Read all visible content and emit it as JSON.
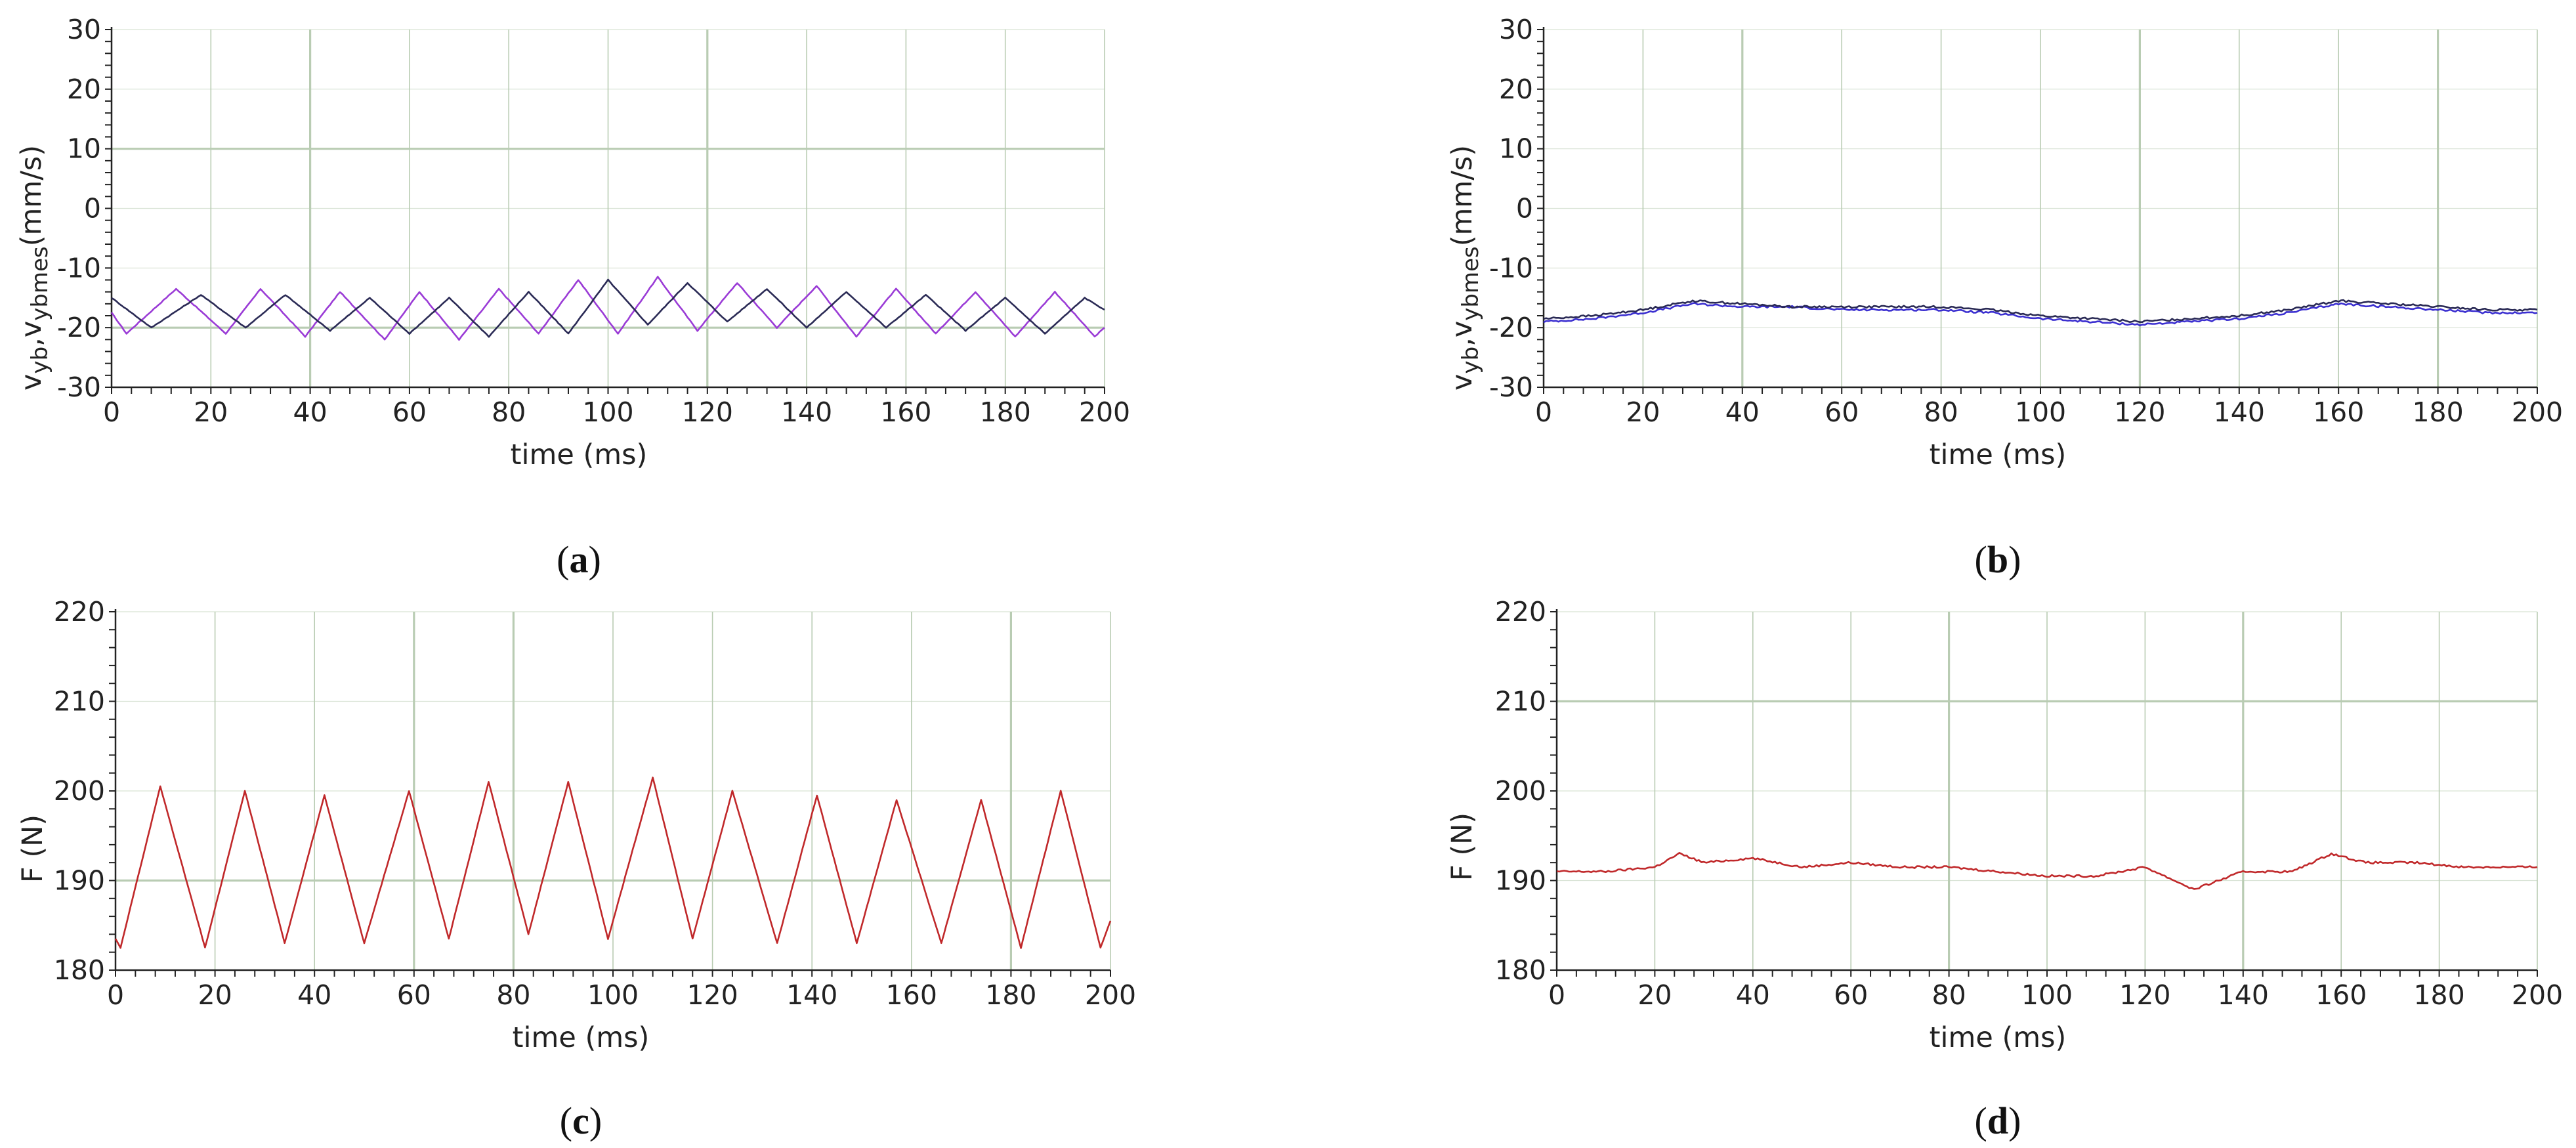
{
  "colors": {
    "grid": "#b9ccb3",
    "axis": "#222222",
    "series_dark": "#2a2a55",
    "series_violet": "#9a3bd6",
    "series_blue": "#3b2fd0",
    "series_red": "#c0282a"
  },
  "chart_data": [
    {
      "type": "line",
      "caption": {
        "open": "(",
        "letter": "a",
        "close": ")"
      },
      "xlabel": "time (ms)",
      "ylabel_main": "v",
      "ylabel_sub1": "yb",
      "ylabel_mid": ",v",
      "ylabel_sub2": "ybmes",
      "ylabel_unit": "(mm/s)",
      "xlim": [
        0,
        200
      ],
      "ylim": [
        -30,
        30
      ],
      "xticks": [
        0,
        20,
        40,
        60,
        80,
        100,
        120,
        140,
        160,
        180,
        200
      ],
      "yticks": [
        -30,
        -20,
        -10,
        0,
        10,
        20,
        30
      ],
      "xtick_labels": [
        "0",
        "20",
        "40",
        "60",
        "80",
        "100",
        "120",
        "140",
        "160",
        "180",
        "200"
      ],
      "ytick_labels": [
        "-30",
        "-20",
        "-10",
        "0",
        "10",
        "20",
        "30"
      ],
      "major_x": [
        40,
        120
      ],
      "major_y": [
        10,
        -20
      ],
      "series": [
        {
          "color": "#9a3bd6",
          "x": [
            0,
            3,
            13,
            23,
            30,
            39,
            46,
            55,
            62,
            70,
            78,
            86,
            94,
            102,
            110,
            118,
            126,
            134,
            142,
            150,
            158,
            166,
            174,
            182,
            190,
            198,
            200
          ],
          "y": [
            -17.5,
            -21,
            -13.5,
            -21,
            -13.5,
            -21.5,
            -14,
            -22,
            -14,
            -22,
            -13.5,
            -21,
            -12,
            -21,
            -11.5,
            -20.5,
            -12.5,
            -20,
            -13,
            -21.5,
            -13.5,
            -21,
            -14,
            -21.5,
            -14,
            -21.5,
            -20
          ]
        },
        {
          "color": "#2a2a55",
          "x": [
            0,
            8,
            18,
            27,
            35,
            44,
            52,
            60,
            68,
            76,
            84,
            92,
            100,
            108,
            116,
            124,
            132,
            140,
            148,
            156,
            164,
            172,
            180,
            188,
            196,
            200
          ],
          "y": [
            -15,
            -20,
            -14.5,
            -20,
            -14.5,
            -20.5,
            -15,
            -21,
            -15,
            -21.5,
            -14,
            -21,
            -12,
            -19.5,
            -12.5,
            -19,
            -13.5,
            -20,
            -14,
            -20,
            -14.5,
            -20.5,
            -15,
            -21,
            -15,
            -17
          ]
        }
      ]
    },
    {
      "type": "line",
      "caption": {
        "open": "(",
        "letter": "b",
        "close": ")"
      },
      "xlabel": "time (ms)",
      "ylabel_main": "v",
      "ylabel_sub1": "yb",
      "ylabel_mid": ",v",
      "ylabel_sub2": "ybmes",
      "ylabel_unit": "(mm/s)",
      "xlim": [
        0,
        200
      ],
      "ylim": [
        -30,
        30
      ],
      "xticks": [
        0,
        20,
        40,
        60,
        80,
        100,
        120,
        140,
        160,
        180,
        200
      ],
      "yticks": [
        -30,
        -20,
        -10,
        0,
        10,
        20,
        30
      ],
      "xtick_labels": [
        "0",
        "20",
        "40",
        "60",
        "80",
        "100",
        "120",
        "140",
        "160",
        "180",
        "200"
      ],
      "ytick_labels": [
        "-30",
        "-20",
        "-10",
        "0",
        "10",
        "20",
        "30"
      ],
      "major_x": [
        40,
        120,
        180
      ],
      "major_y": [],
      "series": [
        {
          "color": "#3b2fd0",
          "x": [
            0,
            10,
            20,
            30,
            40,
            50,
            60,
            70,
            80,
            90,
            100,
            110,
            120,
            130,
            140,
            150,
            160,
            170,
            180,
            190,
            200
          ],
          "y": [
            -19,
            -18.5,
            -17.5,
            -16,
            -16.5,
            -16.5,
            -17,
            -17,
            -17,
            -17.5,
            -18.5,
            -19,
            -19.5,
            -19,
            -18.5,
            -17.5,
            -16,
            -16.5,
            -17,
            -17.5,
            -17.5
          ]
        },
        {
          "color": "#2a2a55",
          "x": [
            0,
            10,
            20,
            30,
            40,
            50,
            60,
            70,
            80,
            90,
            100,
            110,
            120,
            130,
            140,
            150,
            160,
            170,
            180,
            190,
            200
          ],
          "y": [
            -18.5,
            -18,
            -17,
            -15.5,
            -16,
            -16.5,
            -16.5,
            -16.5,
            -16.5,
            -17,
            -18,
            -18.5,
            -19,
            -18.5,
            -18,
            -17,
            -15.5,
            -16,
            -16.5,
            -17,
            -17
          ]
        }
      ]
    },
    {
      "type": "line",
      "caption": {
        "open": "(",
        "letter": "c",
        "close": ")"
      },
      "xlabel": "time (ms)",
      "ylabel": "F (N)",
      "xlim": [
        0,
        200
      ],
      "ylim": [
        180,
        220
      ],
      "xticks": [
        0,
        20,
        40,
        60,
        80,
        100,
        120,
        140,
        160,
        180,
        200
      ],
      "yticks": [
        180,
        190,
        200,
        210,
        220
      ],
      "xtick_labels": [
        "0",
        "20",
        "40",
        "60",
        "80",
        "100",
        "120",
        "140",
        "160",
        "180",
        "200"
      ],
      "ytick_labels": [
        "180",
        "190",
        "200",
        "210",
        "220"
      ],
      "major_x": [
        60,
        80,
        180
      ],
      "major_y": [
        190
      ],
      "series": [
        {
          "color": "#c0282a",
          "x": [
            0,
            1,
            9,
            18,
            26,
            34,
            42,
            50,
            59,
            67,
            75,
            83,
            91,
            99,
            108,
            116,
            124,
            133,
            141,
            149,
            157,
            166,
            174,
            182,
            190,
            198,
            200
          ],
          "y": [
            183.5,
            182.5,
            200.5,
            182.5,
            200,
            183,
            199.5,
            183,
            200,
            183.5,
            201,
            184,
            201,
            183.5,
            201.5,
            183.5,
            200,
            183,
            199.5,
            183,
            199,
            183,
            199,
            182.5,
            200,
            182.5,
            185.5
          ]
        }
      ]
    },
    {
      "type": "line",
      "caption": {
        "open": "(",
        "letter": "d",
        "close": ")"
      },
      "xlabel": "time (ms)",
      "ylabel": "F (N)",
      "xlim": [
        0,
        200
      ],
      "ylim": [
        180,
        220
      ],
      "xticks": [
        0,
        20,
        40,
        60,
        80,
        100,
        120,
        140,
        160,
        180,
        200
      ],
      "yticks": [
        180,
        190,
        200,
        210,
        220
      ],
      "xtick_labels": [
        "0",
        "20",
        "40",
        "60",
        "80",
        "100",
        "120",
        "140",
        "160",
        "180",
        "200"
      ],
      "ytick_labels": [
        "180",
        "190",
        "200",
        "210",
        "220"
      ],
      "major_x": [
        80,
        140
      ],
      "major_y": [
        210
      ],
      "series": [
        {
          "color": "#c0282a",
          "x": [
            0,
            10,
            20,
            25,
            30,
            40,
            50,
            60,
            70,
            80,
            90,
            100,
            110,
            120,
            130,
            140,
            150,
            158,
            165,
            175,
            185,
            200
          ],
          "y": [
            191,
            191,
            191.5,
            193,
            192,
            192.5,
            191.5,
            192,
            191.5,
            191.5,
            191,
            190.5,
            190.5,
            191.5,
            189,
            191,
            191,
            193,
            192,
            192,
            191.5,
            191.5
          ]
        }
      ]
    }
  ]
}
